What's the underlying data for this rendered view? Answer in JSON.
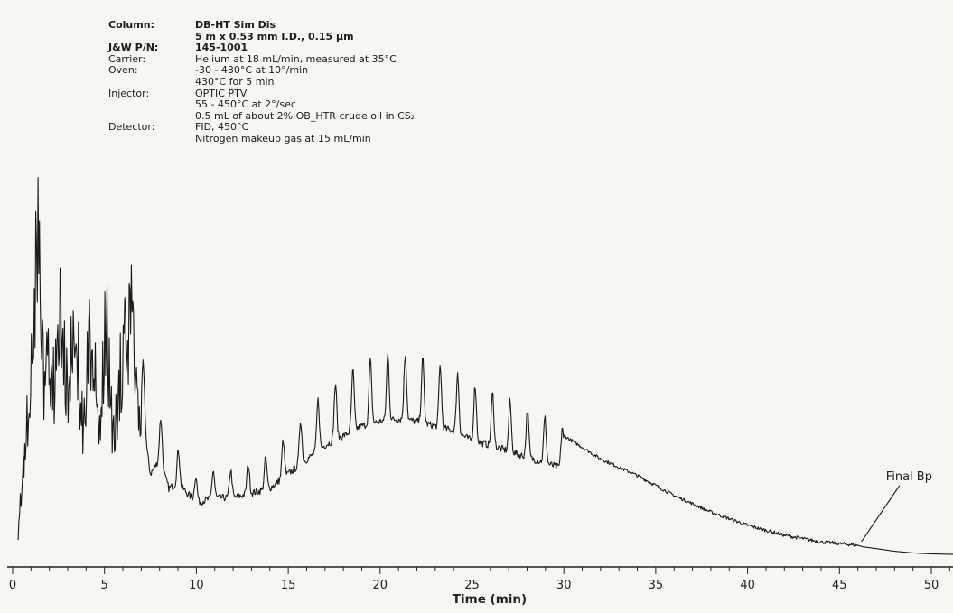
{
  "chart_data": {
    "type": "line",
    "title": "",
    "xlabel": "Time (min)",
    "ylabel": "",
    "xlim": [
      0,
      51
    ],
    "xticks": [
      0,
      5,
      10,
      15,
      20,
      25,
      30,
      35,
      40,
      45,
      50
    ],
    "grid": false,
    "legend": "none",
    "series": [
      {
        "x": [
          0.3,
          0.6,
          0.9,
          1.1,
          1.2,
          1.3,
          1.4,
          1.5,
          1.7,
          1.9,
          2.2,
          2.6,
          3.0,
          3.4,
          3.8,
          4.3,
          4.7,
          5.1,
          5.5,
          6.0,
          6.5,
          6.8,
          7.0,
          7.5,
          8.0,
          8.5,
          9.0,
          9.5,
          10.0,
          11.0,
          12.0,
          13.0,
          14.0,
          15.0,
          16.0,
          17.0,
          18.0,
          19.0,
          20.0,
          21.0,
          22.0,
          23.0,
          24.0,
          25.0,
          26.0,
          28.0,
          30.0,
          32.0,
          34.0,
          36.0,
          38.0,
          40.0,
          42.0,
          44.0,
          46.0,
          46.3,
          47.0,
          48.0,
          49.0,
          50.0,
          51.0
        ],
        "y": [
          8,
          40,
          62,
          90,
          95,
          120,
          163,
          108,
          70,
          96,
          66,
          105,
          64,
          96,
          53,
          93,
          48,
          90,
          47,
          80,
          101,
          68,
          60,
          34,
          40,
          28,
          30,
          26,
          22,
          24,
          24,
          26,
          28,
          34,
          40,
          46,
          50,
          54,
          56,
          57,
          56,
          54,
          52,
          48,
          46,
          41,
          36,
          29,
          24,
          18,
          13,
          9,
          6,
          4,
          3,
          2.5,
          2,
          1.2,
          0.7,
          0.4,
          0.3
        ]
      }
    ],
    "annotations": [
      {
        "text": "Final Bp",
        "x": 46.2,
        "y": 3
      }
    ]
  },
  "conditions": [
    {
      "key": "Column:",
      "value": "DB-HT Sim Dis",
      "bold": true
    },
    {
      "key": "",
      "value": "5 m x 0.53 mm I.D., 0.15 µm",
      "bold": true
    },
    {
      "key": "J&W P/N:",
      "value": "145-1001",
      "bold": true
    },
    {
      "key": "Carrier:",
      "value": "Helium at 18 mL/min, measured at 35°C",
      "bold": false
    },
    {
      "key": "Oven:",
      "value": "-30 - 430°C at 10°/min",
      "bold": false
    },
    {
      "key": "",
      "value": "430°C for 5 min",
      "bold": false
    },
    {
      "key": "Injector:",
      "value": "OPTIC PTV",
      "bold": false
    },
    {
      "key": "",
      "value": "55 - 450°C at 2°/sec",
      "bold": false
    },
    {
      "key": "",
      "value": "0.5 mL of about 2% OB_HTR crude oil in CS₂",
      "bold": false
    },
    {
      "key": "Detector:",
      "value": "FID, 450°C",
      "bold": false
    },
    {
      "key": "",
      "value": "Nitrogen makeup gas at 15 mL/min",
      "bold": false
    }
  ],
  "colors": {
    "trace": "#1a1a1a",
    "paper": "#f7f6f3"
  }
}
